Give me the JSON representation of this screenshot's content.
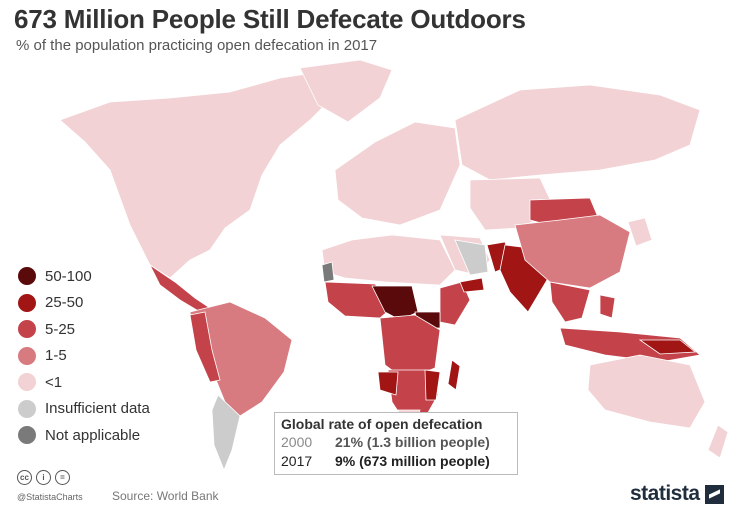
{
  "title": "673 Million People Still Defecate Outdoors",
  "subtitle": "% of the population practicing open defecation in 2017",
  "legend": [
    {
      "label": "50-100",
      "color": "#5a0a0a"
    },
    {
      "label": "25-50",
      "color": "#a11515"
    },
    {
      "label": "5-25",
      "color": "#c4424a"
    },
    {
      "label": "1-5",
      "color": "#d77b80"
    },
    {
      "label": "<1",
      "color": "#f2d2d4"
    },
    {
      "label": "Insufficient data",
      "color": "#cccccc"
    },
    {
      "label": "Not applicable",
      "color": "#7a7a7a"
    }
  ],
  "infobox": {
    "title": "Global rate of open defecation",
    "rows": [
      {
        "year": "2000",
        "value": "21% (1.3 billion people)"
      },
      {
        "year": "2017",
        "value": "9% (673 million people)"
      }
    ]
  },
  "footer": {
    "handle": "@StatistaCharts",
    "source": "Source: World Bank",
    "brand": "statista",
    "license_icons": [
      "cc-icon",
      "by-icon",
      "nd-icon"
    ],
    "license_glyphs": [
      "cc",
      "i",
      "="
    ]
  }
}
